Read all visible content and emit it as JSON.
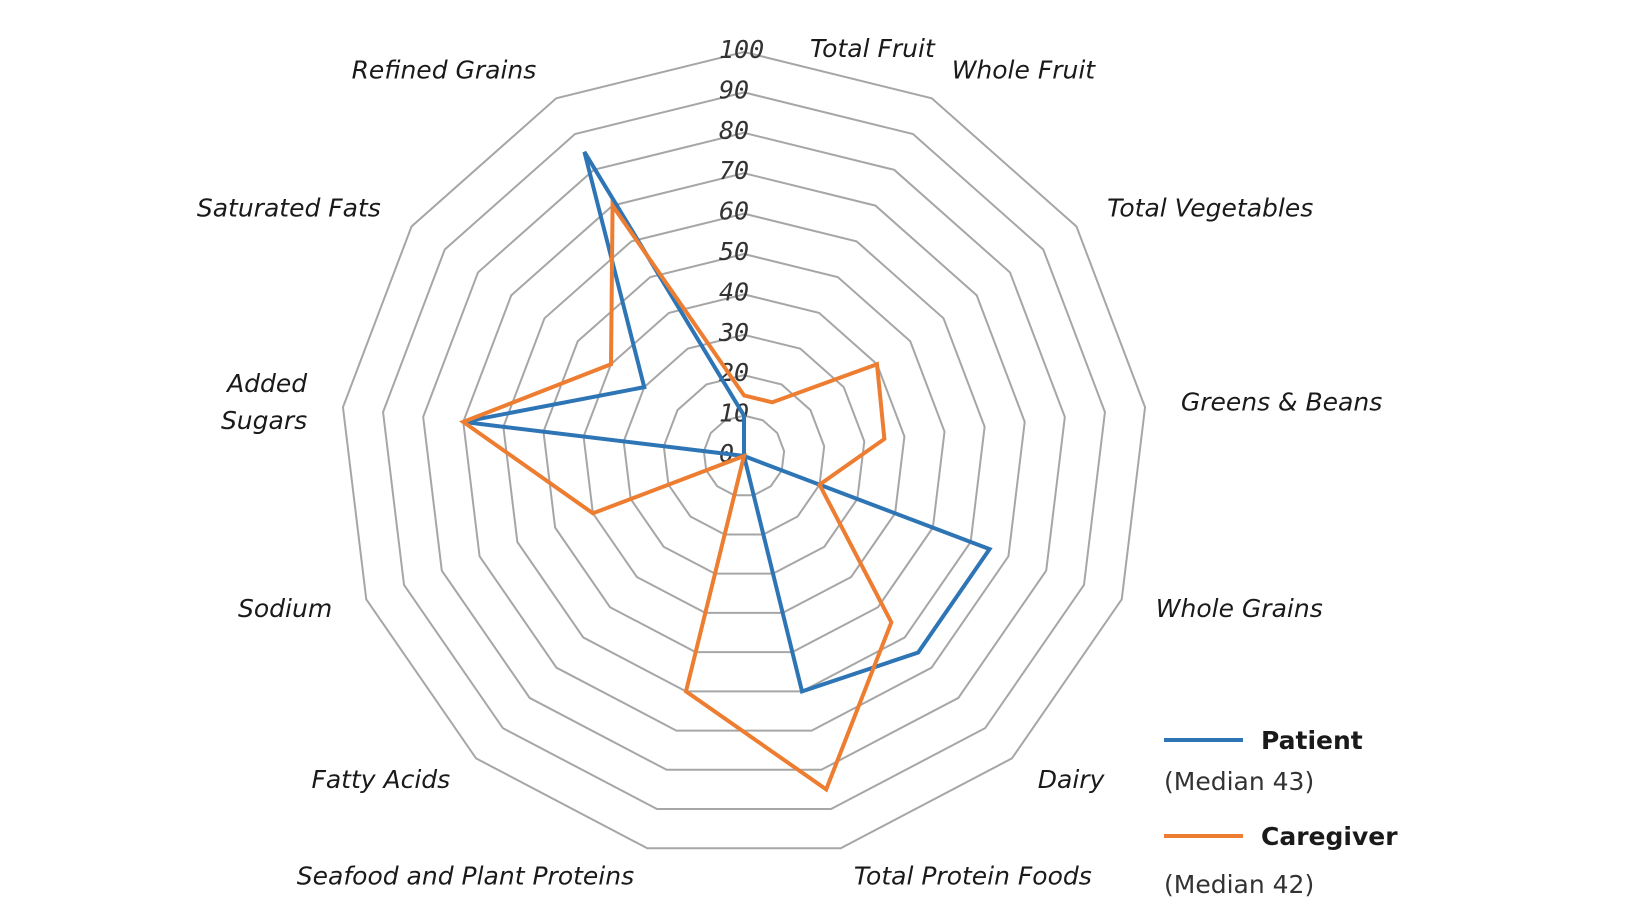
{
  "chart_data": {
    "type": "radar",
    "title": "",
    "axes": [
      "Total Fruit",
      "Whole Fruit",
      "Total Vegetables",
      "Greens & Beans",
      "Whole Grains",
      "Dairy",
      "Total Protein Foods",
      "Seafood and Plant Proteins",
      "Fatty Acids",
      "Sodium",
      "Added Sugars",
      "Saturated Fats",
      "Refined Grains"
    ],
    "axis_label_lines": [
      [
        "Total Fruit"
      ],
      [
        "Whole Fruit"
      ],
      [
        "Total Vegetables"
      ],
      [
        "Greens & Beans"
      ],
      [
        "Whole Grains"
      ],
      [
        "Dairy"
      ],
      [
        "Total Protein Foods"
      ],
      [
        "Seafood and Plant Proteins"
      ],
      [
        "Fatty Acids"
      ],
      [
        "Sodium"
      ],
      [
        "Added",
        "Sugars"
      ],
      [
        "Saturated Fats"
      ],
      [
        "Refined Grains"
      ]
    ],
    "rlim": [
      0,
      100
    ],
    "ticks": [
      "0",
      "10",
      "20",
      "30",
      "40",
      "50",
      "60",
      "70",
      "80",
      "90",
      "100"
    ],
    "grid": true,
    "legend_position": "bottom-right",
    "series": [
      {
        "name": "Patient",
        "note": "(Median 43)",
        "color": "#2e75b6",
        "values": [
          10,
          0,
          0,
          0,
          65,
          65,
          60,
          0,
          0,
          0,
          70,
          30,
          85
        ]
      },
      {
        "name": "Caregiver",
        "note": "(Median 42)",
        "color": "#ed7d31",
        "values": [
          15,
          15,
          40,
          35,
          20,
          55,
          85,
          60,
          0,
          40,
          70,
          40,
          70
        ]
      }
    ]
  }
}
